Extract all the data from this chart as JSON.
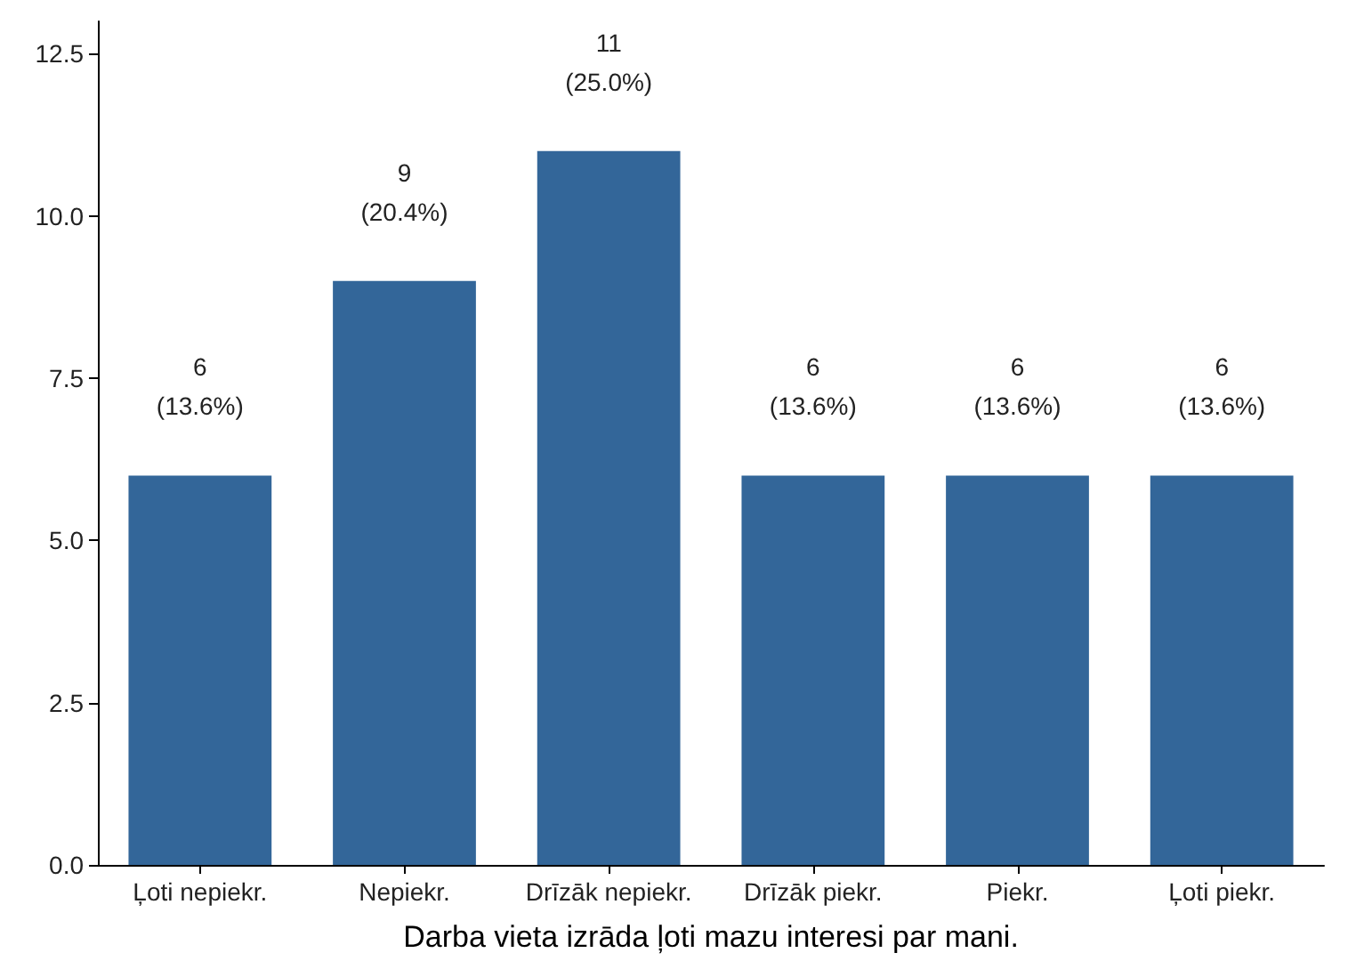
{
  "chart_data": {
    "type": "bar",
    "xlabel": "Darba vieta izrāda ļoti mazu interesi par mani.",
    "categories": [
      "Ļoti nepiekr.",
      "Nepiekr.",
      "Drīzāk nepiekr.",
      "Drīzāk piekr.",
      "Piekr.",
      "Ļoti piekr."
    ],
    "values": [
      6,
      9,
      11,
      6,
      6,
      6
    ],
    "value_labels": [
      "6\n(13.6%)",
      "9\n(20.4%)",
      "11\n(25.0%)",
      "6\n(13.6%)",
      "6\n(13.6%)",
      "6\n(13.6%)"
    ],
    "color": "#336699",
    "ylim": [
      0,
      13
    ],
    "yticks": [
      {
        "value": 0,
        "label": "0.0"
      },
      {
        "value": 2.5,
        "label": "2.5"
      },
      {
        "value": 5,
        "label": "5.0"
      },
      {
        "value": 7.5,
        "label": "7.5"
      },
      {
        "value": 10,
        "label": "10.0"
      },
      {
        "value": 12.5,
        "label": "12.5"
      }
    ],
    "grid": false
  }
}
